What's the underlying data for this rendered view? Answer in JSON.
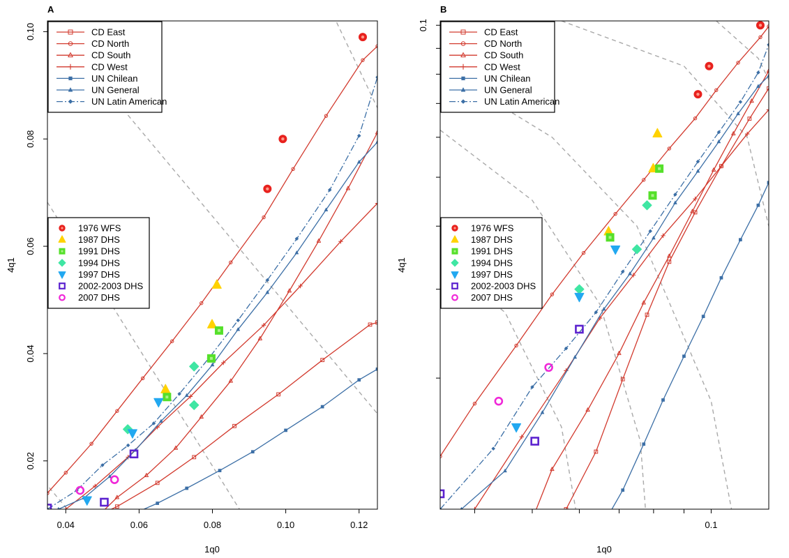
{
  "colors": {
    "cd": "#d23a2e",
    "un": "#3c6fa6",
    "guide": "#a9a9a9",
    "wfs1976": "#e8221e",
    "dhs1987": "#ffd200",
    "dhs1991": "#55e02a",
    "dhs1994": "#3fe6a3",
    "dhs1997": "#22a8f0",
    "dhs2002": "#5b22cf",
    "dhs2007": "#f028d8"
  },
  "chart_data": [
    {
      "panel_label": "A",
      "type": "line",
      "xlabel": "1q0",
      "ylabel": "4q1",
      "xlim": [
        0.035,
        0.125
      ],
      "ylim": [
        0.011,
        0.102
      ],
      "x_ticks": [
        "0.04",
        "0.06",
        "0.08",
        "0.10",
        "0.12"
      ],
      "x_tick_values": [
        0.04,
        0.06,
        0.08,
        0.1,
        0.12
      ],
      "y_ticks": [
        "0.02",
        "0.04",
        "0.06",
        "0.08",
        "0.10"
      ],
      "y_tick_values": [
        0.02,
        0.04,
        0.06,
        0.08,
        0.1
      ],
      "legend_models": [
        "CD East",
        "CD North",
        "CD South",
        "CD West",
        "UN Chilean",
        "UN General",
        "UN Latin American"
      ],
      "legend_surveys": [
        "1976 WFS",
        "1987 DHS",
        "1991 DHS",
        "1994 DHS",
        "1997 DHS",
        "2002-2003 DHS",
        "2007 DHS"
      ],
      "legend_models_position": "top-left",
      "legend_surveys_position": "middle-left",
      "models": [
        {
          "name": "CD East",
          "family": "cd",
          "marker": "square",
          "x": [
            0.035,
            0.054,
            0.065,
            0.075,
            0.086,
            0.098,
            0.11,
            0.123,
            0.125
          ],
          "y": [
            0.0055,
            0.0115,
            0.0159,
            0.0207,
            0.0265,
            0.0324,
            0.0388,
            0.0454,
            0.0458
          ]
        },
        {
          "name": "CD North",
          "family": "cd",
          "marker": "circle",
          "x": [
            0.035,
            0.04,
            0.047,
            0.054,
            0.061,
            0.069,
            0.077,
            0.085,
            0.094,
            0.102,
            0.111,
            0.121,
            0.125
          ],
          "y": [
            0.014,
            0.0178,
            0.0232,
            0.0293,
            0.0354,
            0.0423,
            0.0494,
            0.057,
            0.0654,
            0.0744,
            0.0843,
            0.0947,
            0.0973
          ]
        },
        {
          "name": "CD South",
          "family": "cd",
          "marker": "triangle",
          "x": [
            0.05,
            0.054,
            0.062,
            0.07,
            0.077,
            0.085,
            0.093,
            0.101,
            0.109,
            0.117,
            0.125
          ],
          "y": [
            0.0105,
            0.0132,
            0.0173,
            0.0224,
            0.0282,
            0.0349,
            0.0428,
            0.0517,
            0.061,
            0.0708,
            0.0812
          ]
        },
        {
          "name": "CD West",
          "family": "cd",
          "marker": "plus",
          "x": [
            0.04,
            0.048,
            0.057,
            0.065,
            0.074,
            0.083,
            0.094,
            0.104,
            0.115,
            0.125
          ],
          "y": [
            0.011,
            0.0153,
            0.0207,
            0.0263,
            0.032,
            0.0383,
            0.0453,
            0.0526,
            0.0609,
            0.068
          ]
        },
        {
          "name": "UN Chilean",
          "family": "un",
          "marker": "filled-square",
          "x": [
            0.058,
            0.065,
            0.073,
            0.082,
            0.091,
            0.1,
            0.11,
            0.12,
            0.125
          ],
          "y": [
            0.01,
            0.0121,
            0.0149,
            0.0182,
            0.0217,
            0.0257,
            0.0301,
            0.0351,
            0.0371
          ]
        },
        {
          "name": "UN General",
          "family": "un",
          "marker": "filled-triangle",
          "x": [
            0.038,
            0.045,
            0.052,
            0.059,
            0.066,
            0.073,
            0.08,
            0.087,
            0.095,
            0.103,
            0.111,
            0.12,
            0.125
          ],
          "y": [
            0.011,
            0.0131,
            0.0171,
            0.022,
            0.0274,
            0.0322,
            0.0379,
            0.0445,
            0.0514,
            0.0588,
            0.0668,
            0.0757,
            0.0794
          ]
        },
        {
          "name": "UN Latin American",
          "family": "un",
          "marker": "filled-diamond",
          "x": [
            0.035,
            0.043,
            0.05,
            0.057,
            0.064,
            0.071,
            0.079,
            0.087,
            0.095,
            0.103,
            0.112,
            0.12,
            0.125
          ],
          "y": [
            0.011,
            0.0145,
            0.0192,
            0.0229,
            0.027,
            0.0325,
            0.0391,
            0.0462,
            0.0537,
            0.0614,
            0.0705,
            0.0806,
            0.0915
          ]
        }
      ],
      "surveys": [
        {
          "name": "1976 WFS",
          "color_key": "wfs1976",
          "marker": "circle",
          "points": [
            [
              0.121,
              0.099
            ],
            [
              0.0992,
              0.08
            ],
            [
              0.095,
              0.0707
            ]
          ]
        },
        {
          "name": "1987 DHS",
          "color_key": "dhs1987",
          "marker": "triangle-up",
          "points": [
            [
              0.0812,
              0.0528
            ],
            [
              0.0799,
              0.0454
            ],
            [
              0.0672,
              0.0333
            ]
          ]
        },
        {
          "name": "1991 DHS",
          "color_key": "dhs1991",
          "marker": "square",
          "points": [
            [
              0.0818,
              0.0443
            ],
            [
              0.0797,
              0.0391
            ],
            [
              0.0676,
              0.0319
            ]
          ]
        },
        {
          "name": "1994 DHS",
          "color_key": "dhs1994",
          "marker": "diamond",
          "points": [
            [
              0.075,
              0.0376
            ],
            [
              0.075,
              0.0304
            ],
            [
              0.0569,
              0.0259
            ]
          ]
        },
        {
          "name": "1997 DHS",
          "color_key": "dhs1997",
          "marker": "triangle-down",
          "points": [
            [
              0.0653,
              0.031
            ],
            [
              0.0582,
              0.0252
            ],
            [
              0.0458,
              0.0127
            ]
          ]
        },
        {
          "name": "2002-2003 DHS",
          "color_key": "dhs2002",
          "marker": "square",
          "points": [
            [
              0.0586,
              0.0213
            ],
            [
              0.0505,
              0.0123
            ],
            [
              0.035,
              0.0112
            ]
          ]
        },
        {
          "name": "2007 DHS",
          "color_key": "dhs2007",
          "marker": "circle",
          "points": [
            [
              0.0533,
              0.0165
            ],
            [
              0.0439,
              0.0145
            ]
          ]
        }
      ],
      "guides": [
        [
          [
            0.0355,
            0.102
          ],
          [
            0.125,
            0.0288
          ]
        ],
        [
          [
            0.035,
            0.0682
          ],
          [
            0.0915,
            0.0065
          ]
        ],
        [
          [
            0.0355,
            0.015
          ],
          [
            0.046,
            0.0065
          ]
        ],
        [
          [
            0.113,
            0.103
          ],
          [
            0.125,
            0.0858
          ]
        ]
      ]
    },
    {
      "panel_label": "B",
      "type": "line",
      "xlabel": "1q0",
      "ylabel": "4q1",
      "log_scale": {
        "x": true,
        "y": true
      },
      "xlim": [
        0.035,
        0.125
      ],
      "ylim": [
        0.011,
        0.102
      ],
      "x_ticks": [
        "0.1"
      ],
      "x_tick_values": [
        0.1
      ],
      "x_minor_ticks": [
        0.04,
        0.05,
        0.06,
        0.07,
        0.08,
        0.09
      ],
      "y_ticks": [
        "0.1"
      ],
      "y_tick_values": [
        0.1
      ],
      "y_minor_ticks": [
        0.02,
        0.03,
        0.04,
        0.05,
        0.06,
        0.07,
        0.08,
        0.09
      ],
      "legend_models": [
        "CD East",
        "CD North",
        "CD South",
        "CD West",
        "UN Chilean",
        "UN General",
        "UN Latin American"
      ],
      "legend_surveys": [
        "1976 WFS",
        "1987 DHS",
        "1991 DHS",
        "1994 DHS",
        "1997 DHS",
        "2002-2003 DHS",
        "2007 DHS"
      ],
      "legend_models_position": "top-left",
      "legend_surveys_position": "middle-left",
      "models": [
        {
          "name": "CD East",
          "family": "cd",
          "marker": "square",
          "x": [
            0.057,
            0.064,
            0.071,
            0.078,
            0.085,
            0.094,
            0.104,
            0.116,
            0.125
          ],
          "y": [
            0.011,
            0.0143,
            0.0199,
            0.0267,
            0.034,
            0.0426,
            0.0526,
            0.0653,
            0.075
          ]
        },
        {
          "name": "CD North",
          "family": "cd",
          "marker": "circle",
          "x": [
            0.035,
            0.04,
            0.047,
            0.054,
            0.061,
            0.069,
            0.077,
            0.085,
            0.094,
            0.102,
            0.111,
            0.121,
            0.125
          ],
          "y": [
            0.014,
            0.0178,
            0.0232,
            0.0293,
            0.0354,
            0.0423,
            0.0494,
            0.057,
            0.0654,
            0.0744,
            0.0843,
            0.0947,
            0.0995
          ]
        },
        {
          "name": "CD South",
          "family": "cd",
          "marker": "triangle",
          "x": [
            0.05,
            0.054,
            0.062,
            0.07,
            0.077,
            0.085,
            0.093,
            0.101,
            0.109,
            0.117,
            0.125
          ],
          "y": [
            0.0105,
            0.0132,
            0.0173,
            0.0224,
            0.0282,
            0.0349,
            0.0428,
            0.0517,
            0.061,
            0.0708,
            0.0812
          ]
        },
        {
          "name": "CD West",
          "family": "cd",
          "marker": "plus",
          "x": [
            0.04,
            0.048,
            0.057,
            0.065,
            0.074,
            0.083,
            0.094,
            0.104,
            0.115,
            0.125
          ],
          "y": [
            0.011,
            0.0153,
            0.0207,
            0.0263,
            0.032,
            0.0383,
            0.0453,
            0.0526,
            0.0609,
            0.068
          ]
        },
        {
          "name": "UN Chilean",
          "family": "un",
          "marker": "filled-square",
          "x": [
            0.065,
            0.071,
            0.077,
            0.083,
            0.09,
            0.097,
            0.104,
            0.112,
            0.12,
            0.125
          ],
          "y": [
            0.01,
            0.012,
            0.0148,
            0.0181,
            0.0221,
            0.0265,
            0.0316,
            0.0376,
            0.044,
            0.0488
          ]
        },
        {
          "name": "UN General",
          "family": "un",
          "marker": "filled-triangle",
          "x": [
            0.038,
            0.045,
            0.052,
            0.059,
            0.066,
            0.073,
            0.08,
            0.087,
            0.095,
            0.103,
            0.111,
            0.12,
            0.125
          ],
          "y": [
            0.011,
            0.0131,
            0.0171,
            0.022,
            0.0274,
            0.0322,
            0.0379,
            0.0445,
            0.0514,
            0.0588,
            0.0668,
            0.0757,
            0.0794
          ]
        },
        {
          "name": "UN Latin American",
          "family": "un",
          "marker": "filled-diamond",
          "x": [
            0.035,
            0.043,
            0.05,
            0.057,
            0.064,
            0.071,
            0.079,
            0.087,
            0.095,
            0.103,
            0.112,
            0.12,
            0.125
          ],
          "y": [
            0.011,
            0.0145,
            0.0192,
            0.0229,
            0.027,
            0.0325,
            0.0391,
            0.0462,
            0.0537,
            0.0614,
            0.0705,
            0.0806,
            0.0915
          ]
        }
      ],
      "surveys": [
        {
          "name": "1976 WFS",
          "color_key": "wfs1976",
          "marker": "circle",
          "points": [
            [
              0.121,
              0.1
            ],
            [
              0.0992,
              0.083
            ],
            [
              0.095,
              0.073
            ]
          ]
        },
        {
          "name": "1987 DHS",
          "color_key": "dhs1987",
          "marker": "triangle-up",
          "points": [
            [
              0.0812,
              0.061
            ],
            [
              0.0799,
              0.052
            ],
            [
              0.0672,
              0.039
            ]
          ]
        },
        {
          "name": "1991 DHS",
          "color_key": "dhs1991",
          "marker": "square",
          "points": [
            [
              0.0818,
              0.052
            ],
            [
              0.0797,
              0.046
            ],
            [
              0.0676,
              0.038
            ]
          ]
        },
        {
          "name": "1994 DHS",
          "color_key": "dhs1994",
          "marker": "diamond",
          "points": [
            [
              0.078,
              0.044
            ],
            [
              0.075,
              0.036
            ],
            [
              0.06,
              0.03
            ]
          ]
        },
        {
          "name": "1997 DHS",
          "color_key": "dhs1997",
          "marker": "triangle-down",
          "points": [
            [
              0.069,
              0.036
            ],
            [
              0.06,
              0.029
            ],
            [
              0.047,
              0.016
            ]
          ]
        },
        {
          "name": "2002-2003 DHS",
          "color_key": "dhs2002",
          "marker": "square",
          "points": [
            [
              0.06,
              0.025
            ],
            [
              0.0505,
              0.015
            ],
            [
              0.035,
              0.0118
            ]
          ]
        },
        {
          "name": "2007 DHS",
          "color_key": "dhs2007",
          "marker": "circle",
          "points": [
            [
              0.0533,
              0.021
            ],
            [
              0.0439,
              0.018
            ]
          ]
        }
      ],
      "guides": [
        [
          [
            0.035,
            0.082
          ],
          [
            0.054,
            0.06
          ],
          [
            0.075,
            0.04
          ],
          [
            0.1,
            0.018
          ],
          [
            0.109,
            0.0105
          ]
        ],
        [
          [
            0.035,
            0.062
          ],
          [
            0.05,
            0.045
          ],
          [
            0.065,
            0.028
          ],
          [
            0.076,
            0.015
          ],
          [
            0.078,
            0.01
          ]
        ],
        [
          [
            0.035,
            0.034
          ],
          [
            0.045,
            0.027
          ],
          [
            0.056,
            0.016
          ],
          [
            0.06,
            0.01
          ]
        ],
        [
          [
            0.056,
            0.102
          ],
          [
            0.09,
            0.083
          ],
          [
            0.115,
            0.06
          ],
          [
            0.125,
            0.04
          ]
        ],
        [
          [
            0.102,
            0.102
          ],
          [
            0.12,
            0.086
          ],
          [
            0.125,
            0.078
          ]
        ]
      ]
    }
  ]
}
